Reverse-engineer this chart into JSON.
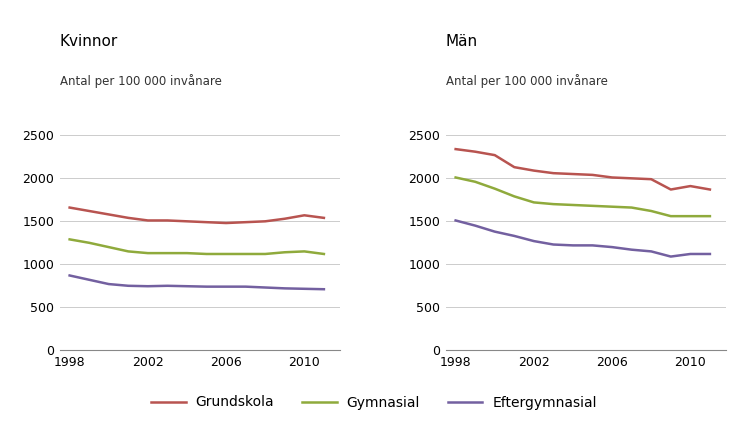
{
  "years": [
    1998,
    1999,
    2000,
    2001,
    2002,
    2003,
    2004,
    2005,
    2006,
    2007,
    2008,
    2009,
    2010,
    2011
  ],
  "kvinnor": {
    "grundskola": [
      1660,
      1620,
      1580,
      1540,
      1510,
      1510,
      1500,
      1490,
      1480,
      1490,
      1500,
      1530,
      1570,
      1540
    ],
    "gymnasial": [
      1290,
      1250,
      1200,
      1150,
      1130,
      1130,
      1130,
      1120,
      1120,
      1120,
      1120,
      1140,
      1150,
      1120
    ],
    "eftergymnasial": [
      870,
      820,
      770,
      750,
      745,
      750,
      745,
      740,
      740,
      740,
      730,
      720,
      715,
      710
    ]
  },
  "man": {
    "grundskola": [
      2340,
      2310,
      2270,
      2130,
      2090,
      2060,
      2050,
      2040,
      2010,
      2000,
      1990,
      1870,
      1910,
      1870
    ],
    "gymnasial": [
      2010,
      1960,
      1880,
      1790,
      1720,
      1700,
      1690,
      1680,
      1670,
      1660,
      1620,
      1560,
      1560,
      1560
    ],
    "eftergymnasial": [
      1510,
      1450,
      1380,
      1330,
      1270,
      1230,
      1220,
      1220,
      1200,
      1170,
      1150,
      1090,
      1120,
      1120
    ]
  },
  "title_kvinnor": "Kvinnor",
  "title_man": "Män",
  "subtitle": "Antal per 100 000 invånare",
  "ylim": [
    0,
    2700
  ],
  "yticks": [
    0,
    500,
    1000,
    1500,
    2000,
    2500
  ],
  "xticks": [
    1998,
    2002,
    2006,
    2010
  ],
  "color_grundskola": "#b85450",
  "color_gymnasial": "#8faa3c",
  "color_eftergymnasial": "#7360a0",
  "legend_labels": [
    "Grundskola",
    "Gymnasial",
    "Eftergymnasial"
  ],
  "line_width": 1.8,
  "xlim": [
    1997.5,
    2011.8
  ]
}
